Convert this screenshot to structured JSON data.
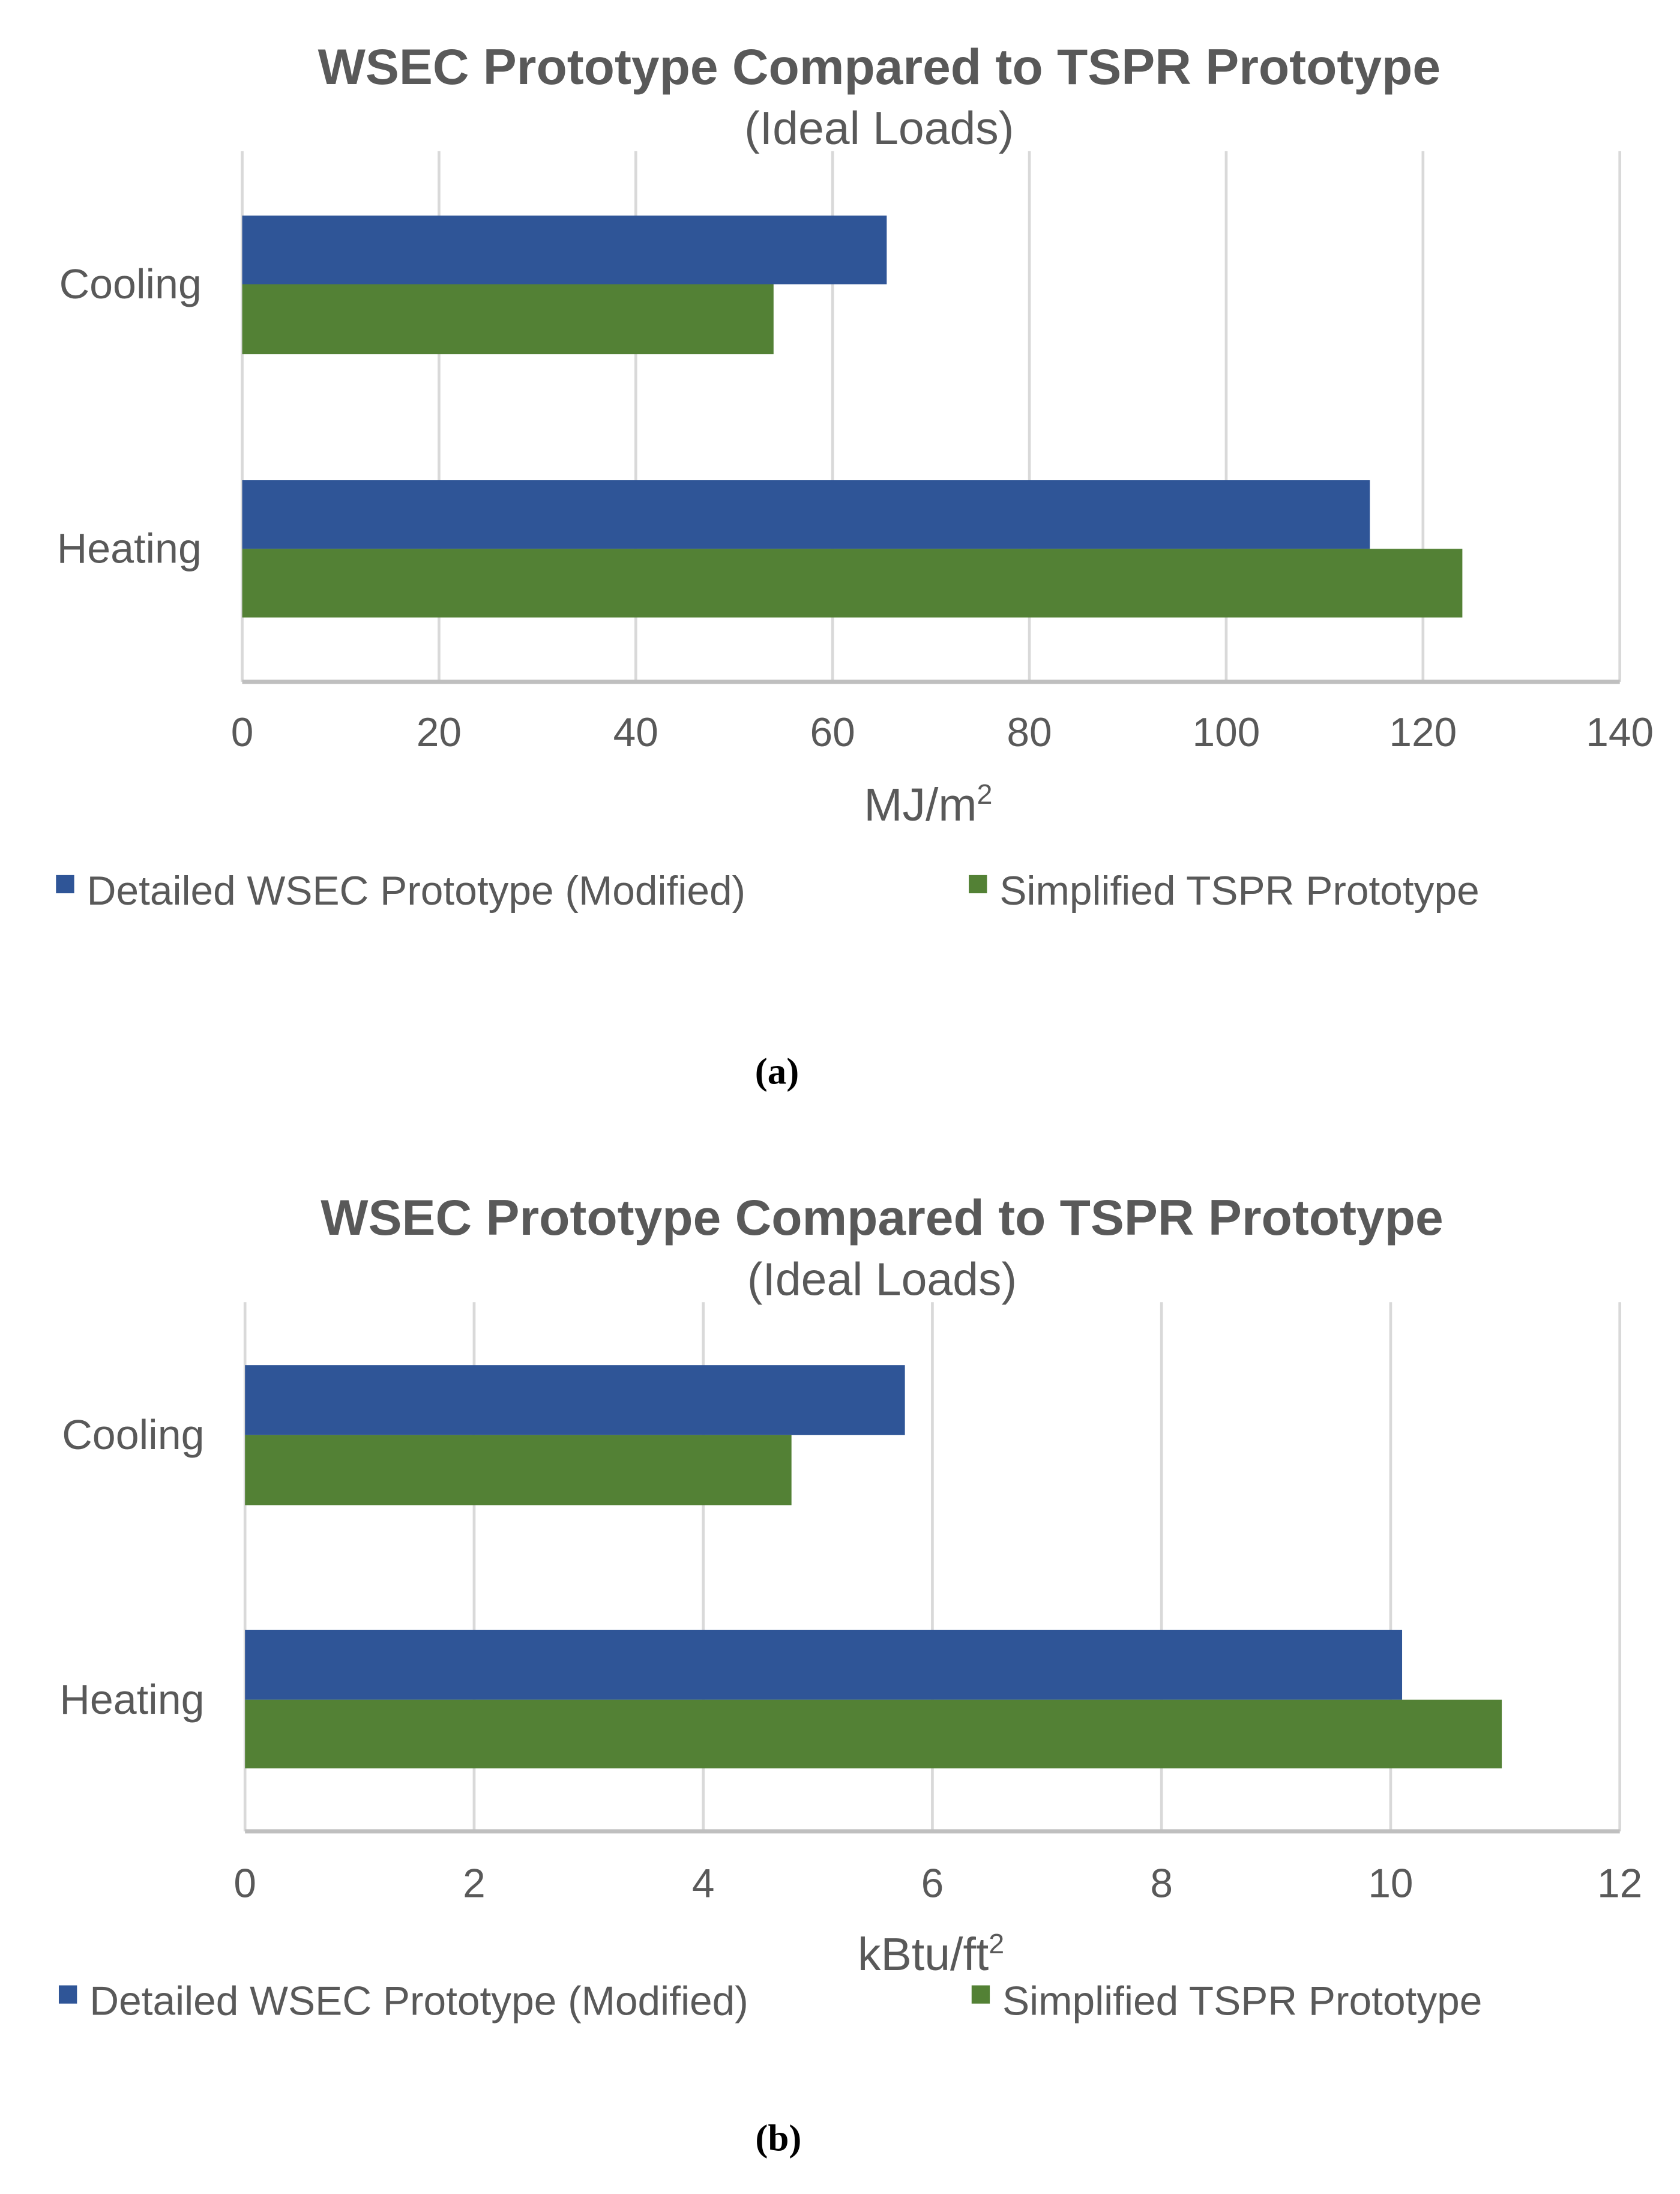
{
  "colors": {
    "detailed": "#2F5597",
    "simplified": "#538135",
    "grid": "#D9D9D9",
    "axis": "#BFBFBF"
  },
  "chart_data": [
    {
      "type": "bar",
      "orientation": "horizontal",
      "title": "WSEC Prototype Compared to TSPR Prototype",
      "subtitle": "(Ideal Loads)",
      "categories": [
        "Cooling",
        "Heating"
      ],
      "series": [
        {
          "name": "Detailed WSEC Prototype (Modified)",
          "values": [
            65.5,
            114.6
          ]
        },
        {
          "name": "Simplified TSPR Prototype",
          "values": [
            54.0,
            124.0
          ]
        }
      ],
      "xlabel": "MJ/m",
      "xlabel_sup": "2",
      "xlim": [
        0,
        140
      ],
      "xticks": [
        "0",
        "20",
        "40",
        "60",
        "80",
        "100",
        "120",
        "140"
      ],
      "grid": true,
      "legend": "bottom",
      "caption": "(a)"
    },
    {
      "type": "bar",
      "orientation": "horizontal",
      "title": "WSEC Prototype Compared to TSPR Prototype",
      "subtitle": "(Ideal Loads)",
      "categories": [
        "Cooling",
        "Heating"
      ],
      "series": [
        {
          "name": "Detailed WSEC Prototype (Modified)",
          "values": [
            5.76,
            10.1
          ]
        },
        {
          "name": "Simplified TSPR Prototype",
          "values": [
            4.77,
            10.97
          ]
        }
      ],
      "xlabel": "kBtu/ft",
      "xlabel_sup": "2",
      "xlim": [
        0,
        12
      ],
      "xticks": [
        "0",
        "2",
        "4",
        "6",
        "8",
        "10",
        "12"
      ],
      "grid": true,
      "legend": "bottom",
      "caption": "(b)"
    }
  ]
}
